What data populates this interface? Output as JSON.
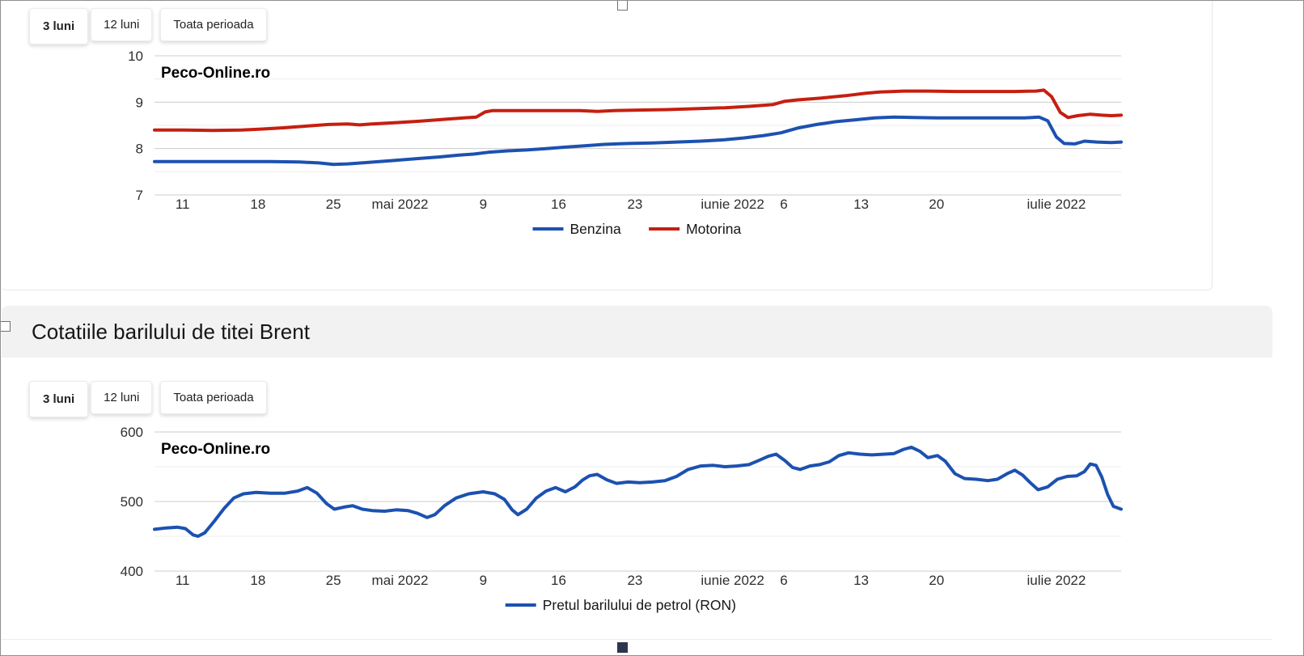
{
  "period_selector": {
    "items": [
      {
        "label": "3 luni",
        "active": true
      },
      {
        "label": "12 luni",
        "active": false
      },
      {
        "label": "Toata perioada",
        "active": false
      }
    ]
  },
  "section": {
    "title": "Cotatiile barilului de titei Brent"
  },
  "colors": {
    "line_blue": "#1c51b0",
    "line_red": "#c51f10",
    "grid_major": "#cccccc",
    "grid_minor": "#ececec"
  },
  "chart_data": [
    {
      "type": "line",
      "watermark": "Peco-Online.ro",
      "legend_position": "bottom",
      "grid": true,
      "x_ticks": [
        {
          "label": "11",
          "pos": 0.029
        },
        {
          "label": "18",
          "pos": 0.107
        },
        {
          "label": "25",
          "pos": 0.185
        },
        {
          "label": "mai 2022",
          "pos": 0.254
        },
        {
          "label": "9",
          "pos": 0.34
        },
        {
          "label": "16",
          "pos": 0.418
        },
        {
          "label": "23",
          "pos": 0.497
        },
        {
          "label": "iunie 2022",
          "pos": 0.598
        },
        {
          "label": "6",
          "pos": 0.651
        },
        {
          "label": "13",
          "pos": 0.731
        },
        {
          "label": "20",
          "pos": 0.809
        },
        {
          "label": "iulie 2022",
          "pos": 0.933
        }
      ],
      "y_axis": {
        "min": 7,
        "max": 10,
        "labeled_ticks": [
          7,
          8,
          9,
          10
        ],
        "minor_ticks": [
          7.5,
          8.5,
          9.5
        ]
      },
      "series": [
        {
          "name": "Benzina",
          "color": "#1c51b0",
          "points": [
            [
              0,
              7.72
            ],
            [
              0.04,
              7.72
            ],
            [
              0.08,
              7.72
            ],
            [
              0.12,
              7.72
            ],
            [
              0.15,
              7.71
            ],
            [
              0.17,
              7.69
            ],
            [
              0.185,
              7.66
            ],
            [
              0.2,
              7.67
            ],
            [
              0.22,
              7.7
            ],
            [
              0.245,
              7.74
            ],
            [
              0.27,
              7.78
            ],
            [
              0.295,
              7.82
            ],
            [
              0.315,
              7.86
            ],
            [
              0.33,
              7.88
            ],
            [
              0.345,
              7.92
            ],
            [
              0.365,
              7.95
            ],
            [
              0.385,
              7.97
            ],
            [
              0.405,
              8.0
            ],
            [
              0.425,
              8.03
            ],
            [
              0.445,
              8.06
            ],
            [
              0.465,
              8.09
            ],
            [
              0.49,
              8.11
            ],
            [
              0.515,
              8.12
            ],
            [
              0.54,
              8.14
            ],
            [
              0.565,
              8.16
            ],
            [
              0.59,
              8.19
            ],
            [
              0.61,
              8.23
            ],
            [
              0.63,
              8.28
            ],
            [
              0.648,
              8.34
            ],
            [
              0.665,
              8.44
            ],
            [
              0.685,
              8.52
            ],
            [
              0.705,
              8.58
            ],
            [
              0.725,
              8.62
            ],
            [
              0.745,
              8.66
            ],
            [
              0.765,
              8.68
            ],
            [
              0.785,
              8.67
            ],
            [
              0.81,
              8.66
            ],
            [
              0.84,
              8.66
            ],
            [
              0.87,
              8.66
            ],
            [
              0.9,
              8.66
            ],
            [
              0.915,
              8.68
            ],
            [
              0.924,
              8.6
            ],
            [
              0.933,
              8.25
            ],
            [
              0.941,
              8.11
            ],
            [
              0.952,
              8.1
            ],
            [
              0.962,
              8.16
            ],
            [
              0.975,
              8.14
            ],
            [
              0.99,
              8.13
            ],
            [
              1,
              8.14
            ]
          ]
        },
        {
          "name": "Motorina",
          "color": "#c51f10",
          "points": [
            [
              0,
              8.4
            ],
            [
              0.03,
              8.4
            ],
            [
              0.06,
              8.39
            ],
            [
              0.09,
              8.4
            ],
            [
              0.11,
              8.42
            ],
            [
              0.135,
              8.45
            ],
            [
              0.16,
              8.49
            ],
            [
              0.18,
              8.52
            ],
            [
              0.2,
              8.53
            ],
            [
              0.212,
              8.51
            ],
            [
              0.225,
              8.53
            ],
            [
              0.25,
              8.56
            ],
            [
              0.275,
              8.59
            ],
            [
              0.3,
              8.63
            ],
            [
              0.32,
              8.66
            ],
            [
              0.333,
              8.68
            ],
            [
              0.342,
              8.79
            ],
            [
              0.35,
              8.82
            ],
            [
              0.38,
              8.82
            ],
            [
              0.41,
              8.82
            ],
            [
              0.44,
              8.82
            ],
            [
              0.458,
              8.8
            ],
            [
              0.475,
              8.82
            ],
            [
              0.5,
              8.83
            ],
            [
              0.53,
              8.84
            ],
            [
              0.56,
              8.86
            ],
            [
              0.59,
              8.88
            ],
            [
              0.615,
              8.91
            ],
            [
              0.64,
              8.95
            ],
            [
              0.652,
              9.02
            ],
            [
              0.665,
              9.05
            ],
            [
              0.69,
              9.09
            ],
            [
              0.715,
              9.14
            ],
            [
              0.735,
              9.19
            ],
            [
              0.75,
              9.22
            ],
            [
              0.775,
              9.24
            ],
            [
              0.8,
              9.24
            ],
            [
              0.83,
              9.23
            ],
            [
              0.86,
              9.23
            ],
            [
              0.89,
              9.23
            ],
            [
              0.912,
              9.24
            ],
            [
              0.92,
              9.26
            ],
            [
              0.928,
              9.12
            ],
            [
              0.937,
              8.78
            ],
            [
              0.945,
              8.67
            ],
            [
              0.955,
              8.71
            ],
            [
              0.968,
              8.74
            ],
            [
              0.98,
              8.72
            ],
            [
              0.99,
              8.71
            ],
            [
              1,
              8.72
            ]
          ]
        }
      ]
    },
    {
      "type": "line",
      "watermark": "Peco-Online.ro",
      "legend_position": "bottom",
      "grid": true,
      "x_ticks": [
        {
          "label": "11",
          "pos": 0.029
        },
        {
          "label": "18",
          "pos": 0.107
        },
        {
          "label": "25",
          "pos": 0.185
        },
        {
          "label": "mai 2022",
          "pos": 0.254
        },
        {
          "label": "9",
          "pos": 0.34
        },
        {
          "label": "16",
          "pos": 0.418
        },
        {
          "label": "23",
          "pos": 0.497
        },
        {
          "label": "iunie 2022",
          "pos": 0.598
        },
        {
          "label": "6",
          "pos": 0.651
        },
        {
          "label": "13",
          "pos": 0.731
        },
        {
          "label": "20",
          "pos": 0.809
        },
        {
          "label": "iulie 2022",
          "pos": 0.933
        }
      ],
      "y_axis": {
        "min": 400,
        "max": 600,
        "labeled_ticks": [
          400,
          500,
          600
        ],
        "minor_ticks": [
          450,
          550
        ]
      },
      "series": [
        {
          "name": "Pretul barilului de petrol (RON)",
          "color": "#1c51b0",
          "points": [
            [
              0,
              460
            ],
            [
              0.012,
              462
            ],
            [
              0.024,
              463
            ],
            [
              0.032,
              461
            ],
            [
              0.04,
              452
            ],
            [
              0.045,
              450
            ],
            [
              0.052,
              455
            ],
            [
              0.062,
              472
            ],
            [
              0.072,
              490
            ],
            [
              0.082,
              505
            ],
            [
              0.092,
              511
            ],
            [
              0.105,
              513
            ],
            [
              0.12,
              512
            ],
            [
              0.135,
              512
            ],
            [
              0.148,
              515
            ],
            [
              0.158,
              520
            ],
            [
              0.168,
              512
            ],
            [
              0.178,
              497
            ],
            [
              0.186,
              489
            ],
            [
              0.196,
              492
            ],
            [
              0.205,
              494
            ],
            [
              0.215,
              489
            ],
            [
              0.225,
              487
            ],
            [
              0.238,
              486
            ],
            [
              0.25,
              488
            ],
            [
              0.262,
              487
            ],
            [
              0.272,
              483
            ],
            [
              0.282,
              477
            ],
            [
              0.29,
              481
            ],
            [
              0.3,
              494
            ],
            [
              0.312,
              505
            ],
            [
              0.325,
              511
            ],
            [
              0.34,
              514
            ],
            [
              0.352,
              511
            ],
            [
              0.362,
              503
            ],
            [
              0.37,
              488
            ],
            [
              0.376,
              481
            ],
            [
              0.385,
              489
            ],
            [
              0.395,
              505
            ],
            [
              0.405,
              515
            ],
            [
              0.415,
              520
            ],
            [
              0.425,
              514
            ],
            [
              0.435,
              521
            ],
            [
              0.443,
              531
            ],
            [
              0.45,
              537
            ],
            [
              0.458,
              539
            ],
            [
              0.468,
              531
            ],
            [
              0.478,
              526
            ],
            [
              0.49,
              528
            ],
            [
              0.502,
              527
            ],
            [
              0.515,
              528
            ],
            [
              0.528,
              530
            ],
            [
              0.54,
              536
            ],
            [
              0.552,
              546
            ],
            [
              0.565,
              551
            ],
            [
              0.578,
              552
            ],
            [
              0.59,
              550
            ],
            [
              0.602,
              551
            ],
            [
              0.615,
              553
            ],
            [
              0.625,
              559
            ],
            [
              0.635,
              565
            ],
            [
              0.643,
              568
            ],
            [
              0.652,
              559
            ],
            [
              0.66,
              549
            ],
            [
              0.668,
              546
            ],
            [
              0.678,
              551
            ],
            [
              0.688,
              553
            ],
            [
              0.698,
              557
            ],
            [
              0.708,
              566
            ],
            [
              0.718,
              570
            ],
            [
              0.73,
              568
            ],
            [
              0.742,
              567
            ],
            [
              0.755,
              568
            ],
            [
              0.765,
              569
            ],
            [
              0.775,
              575
            ],
            [
              0.783,
              578
            ],
            [
              0.792,
              572
            ],
            [
              0.8,
              563
            ],
            [
              0.81,
              566
            ],
            [
              0.818,
              558
            ],
            [
              0.828,
              540
            ],
            [
              0.838,
              533
            ],
            [
              0.85,
              532
            ],
            [
              0.862,
              530
            ],
            [
              0.872,
              532
            ],
            [
              0.882,
              540
            ],
            [
              0.89,
              545
            ],
            [
              0.898,
              538
            ],
            [
              0.906,
              527
            ],
            [
              0.914,
              517
            ],
            [
              0.924,
              521
            ],
            [
              0.934,
              532
            ],
            [
              0.944,
              536
            ],
            [
              0.954,
              537
            ],
            [
              0.962,
              543
            ],
            [
              0.968,
              554
            ],
            [
              0.974,
              552
            ],
            [
              0.98,
              535
            ],
            [
              0.986,
              510
            ],
            [
              0.992,
              493
            ],
            [
              1,
              489
            ]
          ]
        }
      ]
    }
  ]
}
